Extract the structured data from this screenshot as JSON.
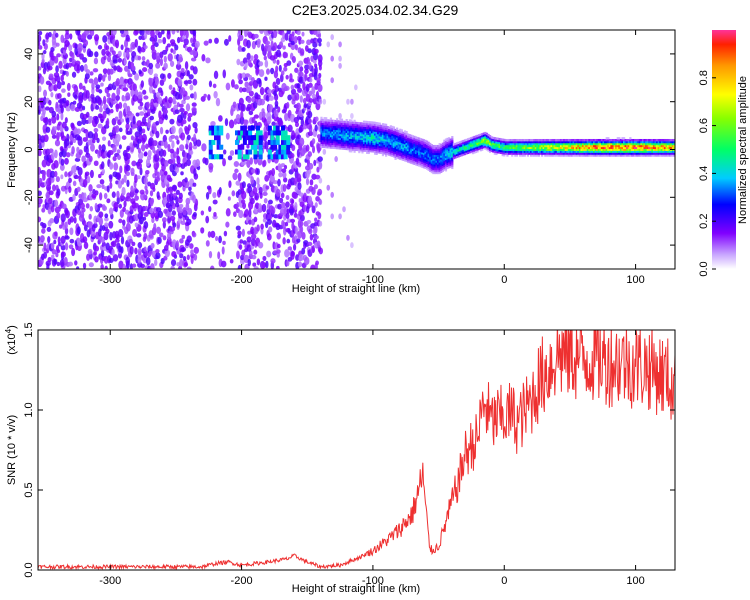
{
  "title": "C2E3.2025.034.02.34.G29",
  "chart_data": [
    {
      "type": "heatmap",
      "xlabel": "Height of straight line (km)",
      "ylabel": "Frequency (Hz)",
      "xlim": [
        -355,
        130
      ],
      "ylim": [
        -50,
        50
      ],
      "xticks": [
        -300,
        -200,
        -100,
        0,
        100
      ],
      "yticks": [
        -40,
        -20,
        0,
        20,
        40
      ],
      "xtick_labels": [
        "-300",
        "-200",
        "-100",
        "0",
        "100"
      ],
      "ytick_labels": [
        "-40",
        "-20",
        "0",
        "20",
        "40"
      ],
      "colorbar": {
        "label": "Normalized spectral amplitude",
        "range": [
          0,
          1
        ],
        "ticks": [
          0.0,
          0.2,
          0.4,
          0.6,
          0.8
        ],
        "tick_labels": [
          "0.0",
          "0.2",
          "0.4",
          "0.6",
          "0.8"
        ]
      },
      "ridge": {
        "x": [
          -140,
          -120,
          -100,
          -90,
          -80,
          -70,
          -60,
          -55,
          -50,
          -45,
          -40,
          -30,
          -20,
          -15,
          -10,
          0,
          20,
          40,
          60,
          80,
          100,
          130
        ],
        "freq": [
          7,
          6,
          5,
          4,
          2,
          0,
          -2,
          -4,
          -4,
          -2,
          -1,
          1,
          3,
          4,
          2,
          1,
          1,
          1,
          1,
          1,
          1,
          1
        ],
        "amplitude": [
          0.35,
          0.4,
          0.45,
          0.4,
          0.4,
          0.35,
          0.35,
          0.35,
          0.35,
          0.4,
          0.45,
          0.5,
          0.6,
          0.7,
          0.6,
          0.55,
          0.65,
          0.75,
          0.9,
          0.95,
          0.95,
          0.85
        ]
      },
      "noise_region": {
        "x_start": -355,
        "x_end": -140
      }
    },
    {
      "type": "line",
      "xlabel": "Height of straight line (km)",
      "ylabel": "SNR (10 * v/v)",
      "multiplier": "(x10",
      "multiplier_exp": "4",
      "multiplier_close": ")",
      "xlim": [
        -355,
        130
      ],
      "ylim": [
        0,
        1.5
      ],
      "xticks": [
        -300,
        -200,
        -100,
        0,
        100
      ],
      "yticks": [
        0.0,
        0.5,
        1.0,
        1.5
      ],
      "xtick_labels": [
        "-300",
        "-200",
        "-100",
        "0",
        "100"
      ],
      "ytick_labels": [
        "0.0",
        "0.5",
        "1.0",
        "1.5"
      ],
      "series": [
        {
          "color": "#ee3030",
          "x": [
            -355,
            -300,
            -250,
            -230,
            -220,
            -210,
            -200,
            -180,
            -165,
            -160,
            -150,
            -140,
            -125,
            -110,
            -100,
            -90,
            -80,
            -75,
            -70,
            -65,
            -62,
            -60,
            -57,
            -55,
            -50,
            -45,
            -40,
            -35,
            -30,
            -25,
            -20,
            -18,
            -15,
            -10,
            -5,
            0,
            5,
            10,
            15,
            20,
            25,
            30,
            35,
            40,
            45,
            50,
            60,
            70,
            80,
            90,
            100,
            110,
            120,
            125,
            130
          ],
          "y": [
            0.02,
            0.02,
            0.02,
            0.02,
            0.04,
            0.05,
            0.03,
            0.05,
            0.07,
            0.09,
            0.05,
            0.02,
            0.03,
            0.08,
            0.12,
            0.18,
            0.25,
            0.3,
            0.35,
            0.5,
            0.6,
            0.4,
            0.15,
            0.12,
            0.15,
            0.28,
            0.42,
            0.55,
            0.72,
            0.78,
            0.82,
            0.95,
            1.05,
            0.92,
            0.95,
            0.95,
            0.98,
            0.92,
            0.98,
            1.05,
            1.15,
            1.22,
            1.28,
            1.35,
            1.35,
            1.35,
            1.32,
            1.33,
            1.3,
            1.3,
            1.28,
            1.27,
            1.22,
            1.2,
            1.12
          ]
        }
      ]
    }
  ]
}
